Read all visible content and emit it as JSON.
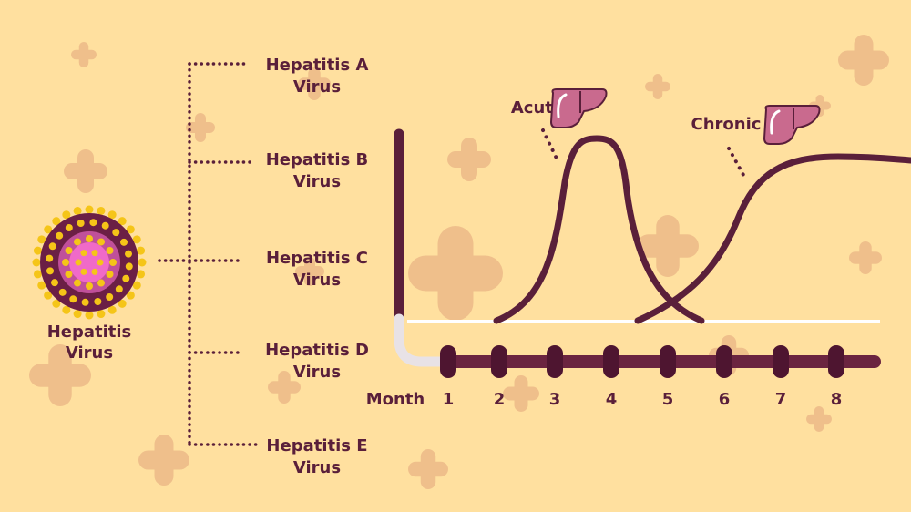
{
  "virus": {
    "label_line1": "Hepatitis",
    "label_line2": "Virus"
  },
  "types": [
    {
      "line1": "Hepatitis A",
      "line2": "Virus"
    },
    {
      "line1": "Hepatitis B",
      "line2": "Virus"
    },
    {
      "line1": "Hepatitis C",
      "line2": "Virus"
    },
    {
      "line1": "Hepatitis D",
      "line2": "Virus"
    },
    {
      "line1": "Hepatitis E",
      "line2": "Virus"
    }
  ],
  "graph": {
    "axis_label": "Month",
    "months": [
      "1",
      "2",
      "3",
      "4",
      "5",
      "6",
      "7",
      "8"
    ],
    "acute_label": "Acute",
    "chronic_label": "Chronic"
  },
  "colors": {
    "background": "#ffe09f",
    "dark": "#5a1f3a",
    "cross": "#efbf8b",
    "liver": "#c96a8e",
    "virus_spike": "#f5c518"
  }
}
